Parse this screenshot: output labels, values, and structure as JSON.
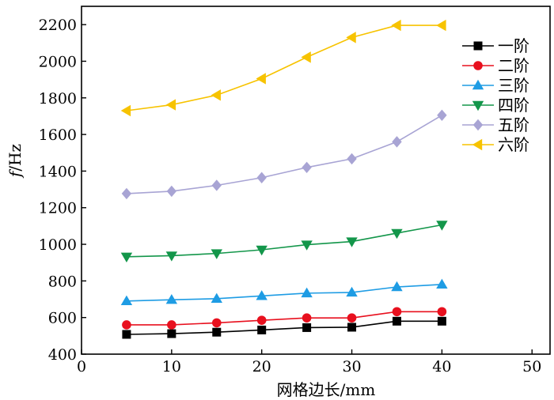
{
  "chart_data": {
    "type": "line",
    "title": "",
    "xlabel": "网格边长/mm",
    "ylabel_italic": "f",
    "ylabel_rest": "/Hz",
    "xlim": [
      0,
      52
    ],
    "ylim": [
      400,
      2300
    ],
    "xticks": [
      0,
      10,
      20,
      30,
      40,
      50
    ],
    "yticks": [
      400,
      600,
      800,
      1000,
      1200,
      1400,
      1600,
      1800,
      2000,
      2200
    ],
    "legend_position": "top-right",
    "x": [
      5,
      10,
      15,
      20,
      25,
      30,
      35,
      40
    ],
    "series": [
      {
        "name": "一阶",
        "color": "#000000",
        "marker": "square",
        "values": [
          508,
          512,
          520,
          532,
          545,
          547,
          580,
          580
        ]
      },
      {
        "name": "二阶",
        "color": "#e8101e",
        "marker": "circle",
        "values": [
          560,
          560,
          571,
          585,
          598,
          598,
          632,
          632
        ]
      },
      {
        "name": "三阶",
        "color": "#1e9ce4",
        "marker": "triangle-up",
        "values": [
          690,
          697,
          703,
          718,
          733,
          737,
          767,
          781
        ]
      },
      {
        "name": "四阶",
        "color": "#13964a",
        "marker": "triangle-down",
        "values": [
          932,
          938,
          950,
          970,
          998,
          1015,
          1061,
          1106
        ]
      },
      {
        "name": "五阶",
        "color": "#a8a4d4",
        "marker": "diamond",
        "values": [
          1277,
          1290,
          1322,
          1364,
          1420,
          1467,
          1560,
          1705
        ]
      },
      {
        "name": "六阶",
        "color": "#f7c300",
        "marker": "triangle-left",
        "values": [
          1730,
          1762,
          1815,
          1905,
          2022,
          2130,
          2196,
          2196
        ]
      }
    ]
  }
}
